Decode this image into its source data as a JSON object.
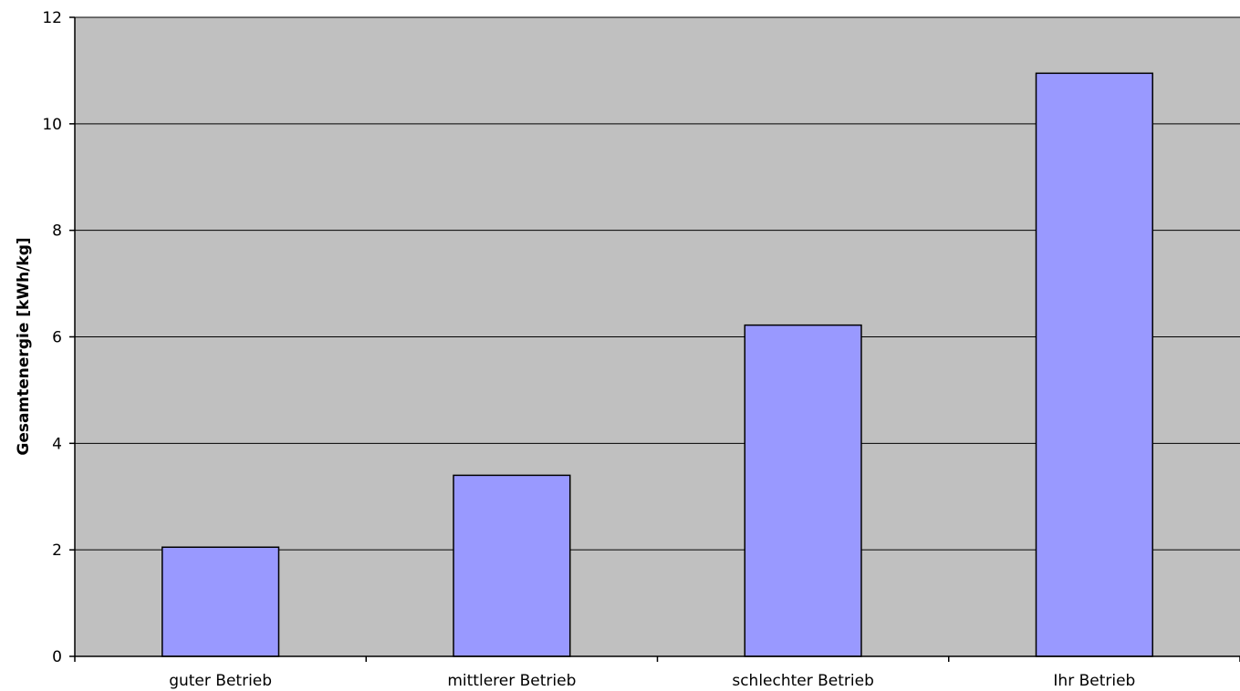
{
  "chart_data": {
    "type": "bar",
    "title": "",
    "xlabel": "",
    "ylabel": "Gesamtenergie [kWh/kg]",
    "categories": [
      "guter Betrieb",
      "mittlerer Betrieb",
      "schlechter Betrieb",
      "Ihr Betrieb"
    ],
    "values": [
      2.05,
      3.4,
      6.22,
      10.95
    ],
    "ylim": [
      0,
      12
    ],
    "yticks": [
      0,
      2,
      4,
      6,
      8,
      10,
      12
    ],
    "grid": true,
    "legend": "none",
    "colors": {
      "plot_background": "#c0c0c0",
      "bar_fill": "#9999ff",
      "bar_stroke": "#000000",
      "gridline": "#000000",
      "axis": "#000000"
    }
  }
}
